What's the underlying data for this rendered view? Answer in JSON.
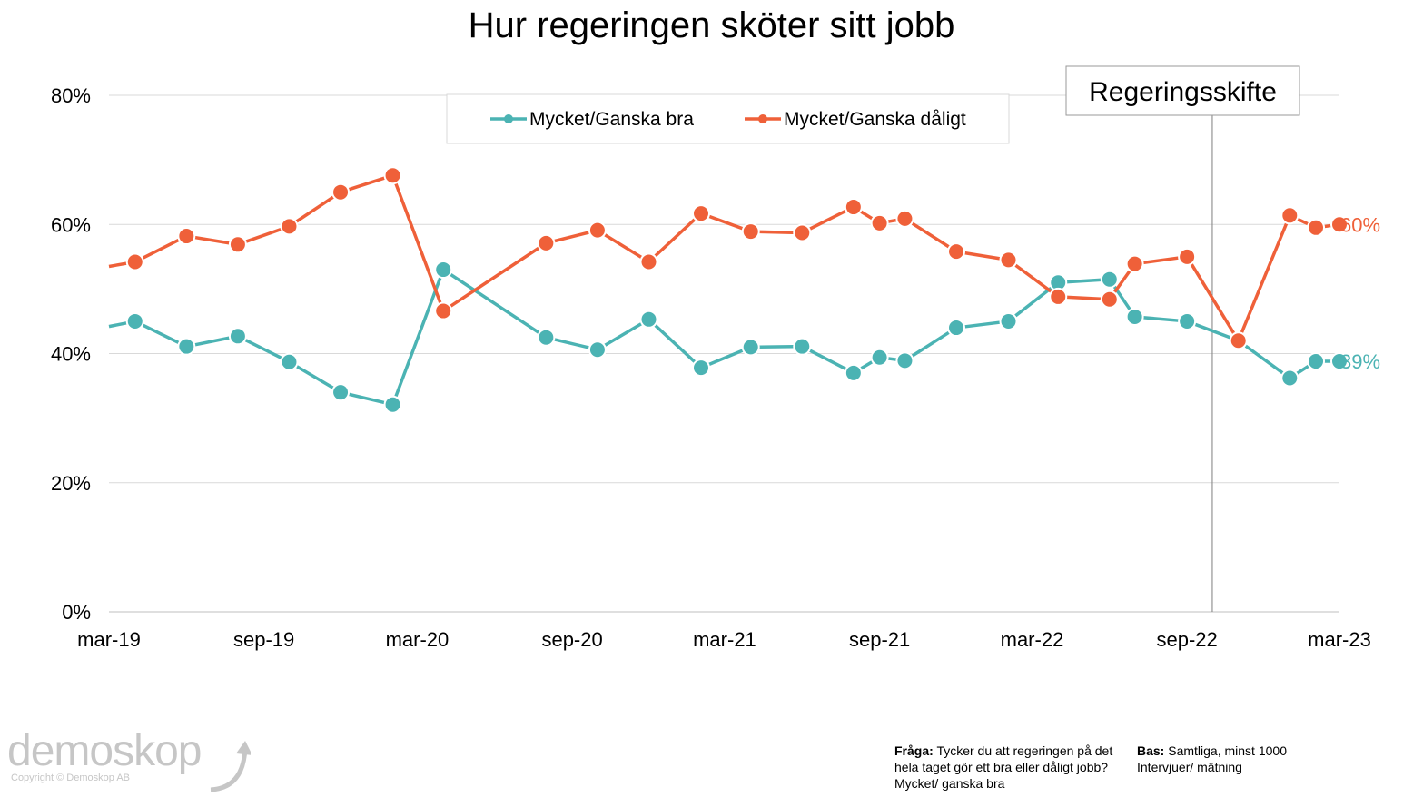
{
  "chart_data": {
    "type": "line",
    "title": "Hur regeringen sköter sitt jobb",
    "ylim": [
      0,
      80
    ],
    "yticks": [
      "0%",
      "20%",
      "40%",
      "60%",
      "80%"
    ],
    "xlim": [
      "2019-03-01",
      "2023-03-01"
    ],
    "xticks": [
      {
        "date": "2019-03-01",
        "label": "mar-19"
      },
      {
        "date": "2019-09-01",
        "label": "sep-19"
      },
      {
        "date": "2020-03-01",
        "label": "mar-20"
      },
      {
        "date": "2020-09-01",
        "label": "sep-20"
      },
      {
        "date": "2021-03-01",
        "label": "mar-21"
      },
      {
        "date": "2021-09-01",
        "label": "sep-21"
      },
      {
        "date": "2022-03-01",
        "label": "mar-22"
      },
      {
        "date": "2022-09-01",
        "label": "sep-22"
      },
      {
        "date": "2023-03-01",
        "label": "mar-23"
      }
    ],
    "legend_position": "top-center",
    "grid": true,
    "series": [
      {
        "name": "Mycket/Ganska bra",
        "color": "#4BB3B3",
        "end_label": "39%",
        "start_value": 44.2,
        "points": [
          {
            "date": "2019-04-01",
            "value": 45.0
          },
          {
            "date": "2019-06-01",
            "value": 41.1
          },
          {
            "date": "2019-08-01",
            "value": 42.7
          },
          {
            "date": "2019-10-01",
            "value": 38.7
          },
          {
            "date": "2019-12-01",
            "value": 34.0
          },
          {
            "date": "2020-02-01",
            "value": 32.1
          },
          {
            "date": "2020-04-01",
            "value": 53.0
          },
          {
            "date": "2020-08-01",
            "value": 42.5
          },
          {
            "date": "2020-10-01",
            "value": 40.6
          },
          {
            "date": "2020-12-01",
            "value": 45.3
          },
          {
            "date": "2021-02-01",
            "value": 37.8
          },
          {
            "date": "2021-04-01",
            "value": 41.0
          },
          {
            "date": "2021-06-01",
            "value": 41.1
          },
          {
            "date": "2021-08-01",
            "value": 37.0
          },
          {
            "date": "2021-09-01",
            "value": 39.4
          },
          {
            "date": "2021-10-01",
            "value": 38.9
          },
          {
            "date": "2021-12-01",
            "value": 44.0
          },
          {
            "date": "2022-02-01",
            "value": 45.0
          },
          {
            "date": "2022-04-01",
            "value": 51.0
          },
          {
            "date": "2022-06-01",
            "value": 51.5
          },
          {
            "date": "2022-07-01",
            "value": 45.7
          },
          {
            "date": "2022-09-01",
            "value": 45.0
          },
          {
            "date": "2022-11-01",
            "value": 42.0
          },
          {
            "date": "2023-01-01",
            "value": 36.2
          },
          {
            "date": "2023-02-01",
            "value": 38.8
          },
          {
            "date": "2023-03-01",
            "value": 38.8
          }
        ]
      },
      {
        "name": "Mycket/Ganska dåligt",
        "color": "#EF6039",
        "end_label": "60%",
        "start_value": 53.5,
        "points": [
          {
            "date": "2019-04-01",
            "value": 54.2
          },
          {
            "date": "2019-06-01",
            "value": 58.2
          },
          {
            "date": "2019-08-01",
            "value": 56.9
          },
          {
            "date": "2019-10-01",
            "value": 59.7
          },
          {
            "date": "2019-12-01",
            "value": 65.0
          },
          {
            "date": "2020-02-01",
            "value": 67.6
          },
          {
            "date": "2020-04-01",
            "value": 46.6
          },
          {
            "date": "2020-08-01",
            "value": 57.1
          },
          {
            "date": "2020-10-01",
            "value": 59.1
          },
          {
            "date": "2020-12-01",
            "value": 54.2
          },
          {
            "date": "2021-02-01",
            "value": 61.7
          },
          {
            "date": "2021-04-01",
            "value": 58.9
          },
          {
            "date": "2021-06-01",
            "value": 58.7
          },
          {
            "date": "2021-08-01",
            "value": 62.7
          },
          {
            "date": "2021-09-01",
            "value": 60.2
          },
          {
            "date": "2021-10-01",
            "value": 60.9
          },
          {
            "date": "2021-12-01",
            "value": 55.8
          },
          {
            "date": "2022-02-01",
            "value": 54.5
          },
          {
            "date": "2022-04-01",
            "value": 48.8
          },
          {
            "date": "2022-06-01",
            "value": 48.4
          },
          {
            "date": "2022-07-01",
            "value": 53.9
          },
          {
            "date": "2022-09-01",
            "value": 55.0
          },
          {
            "date": "2022-11-01",
            "value": 42.0
          },
          {
            "date": "2023-01-01",
            "value": 61.4
          },
          {
            "date": "2023-02-01",
            "value": 59.5
          },
          {
            "date": "2023-03-01",
            "value": 60.0
          }
        ]
      }
    ],
    "annotation": {
      "label": "Regeringsskifte",
      "date": "2022-10-01"
    }
  },
  "footer": {
    "question_label": "Fråga:",
    "question_text": "Tycker du att regeringen på det hela taget gör ett bra eller dåligt jobb? Mycket/ ganska bra",
    "base_label": "Bas:",
    "base_text": "Samtliga, minst 1000 Intervjuer/ mätning"
  },
  "logo": {
    "text": "demoskop",
    "copyright": "Copyright © Demoskop AB",
    "color": "#c6c6c6"
  }
}
